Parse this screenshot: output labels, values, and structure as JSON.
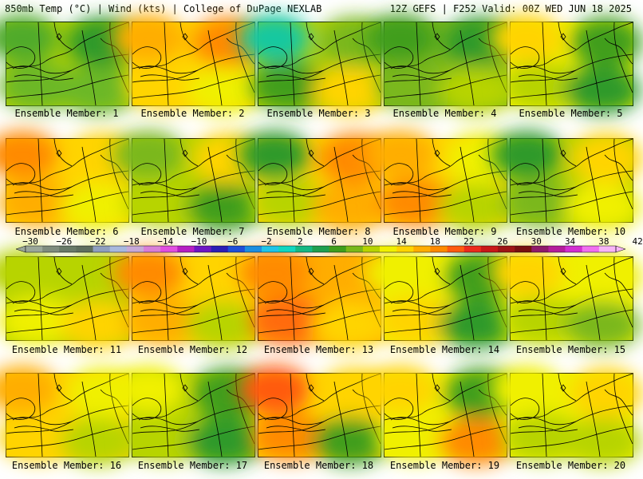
{
  "header": {
    "left": "850mb Temp (°C) | Wind (kts) | College of DuPage NEXLAB",
    "right": "12Z GEFS | F252 Valid: 00Z WED JUN 18 2025"
  },
  "colorbar": {
    "tick_labels": [
      "−30",
      "−26",
      "−22",
      "−18",
      "−14",
      "−10",
      "−6",
      "−2",
      "2",
      "6",
      "10",
      "14",
      "18",
      "22",
      "26",
      "30",
      "34",
      "38",
      "42"
    ],
    "colors": [
      "#9aa79a",
      "#7f8c7f",
      "#697a69",
      "#5f6f5f",
      "#8e9fbf",
      "#a8b8dd",
      "#c7a9d8",
      "#d87ed8",
      "#e14ee1",
      "#b51fc4",
      "#6d17c4",
      "#2b1fb5",
      "#1f4fd8",
      "#1c8ee0",
      "#20c4e8",
      "#12d6c0",
      "#16b884",
      "#1fa050",
      "#3f9e1c",
      "#7ab81a",
      "#b7d400",
      "#f0f000",
      "#ffd400",
      "#ffad00",
      "#ff8a00",
      "#ff5a10",
      "#ec2a1c",
      "#c81818",
      "#9e1414",
      "#781010",
      "#8f1a6a",
      "#b41c9c",
      "#d22fd2",
      "#f06ff0",
      "#f7b5f7"
    ],
    "units": "°C"
  },
  "panels": [
    {
      "label": "Ensemble Member: 1",
      "colors": [
        "#4faa2a",
        "#6cb826",
        "#2f9a2a",
        "#6cb826"
      ],
      "base": "#b7d400"
    },
    {
      "label": "Ensemble Member: 2",
      "colors": [
        "#ffad00",
        "#ffd400",
        "#ff8a00",
        "#f0f000"
      ],
      "base": "#ffd400"
    },
    {
      "label": "Ensemble Member: 3",
      "colors": [
        "#12c8a0",
        "#3f9e1c",
        "#7ab81a",
        "#ffd400"
      ],
      "base": "#b7d400"
    },
    {
      "label": "Ensemble Member: 4",
      "colors": [
        "#3f9e1c",
        "#7ab81a",
        "#2f9a2a",
        "#b7d400"
      ],
      "base": "#7ab81a"
    },
    {
      "label": "Ensemble Member: 5",
      "colors": [
        "#ffd400",
        "#b7d400",
        "#3f9e1c",
        "#2f9a2a"
      ],
      "base": "#f0f000"
    },
    {
      "label": "Ensemble Member: 6",
      "colors": [
        "#ff8a00",
        "#ffad00",
        "#ffd400",
        "#f0f000"
      ],
      "base": "#ffd400"
    },
    {
      "label": "Ensemble Member: 7",
      "colors": [
        "#7ab81a",
        "#b7d400",
        "#ffd400",
        "#3f9e1c"
      ],
      "base": "#b7d400"
    },
    {
      "label": "Ensemble Member: 8",
      "colors": [
        "#2f9a2a",
        "#b7d400",
        "#ff8a00",
        "#ffad00"
      ],
      "base": "#ffd400"
    },
    {
      "label": "Ensemble Member: 9",
      "colors": [
        "#ffad00",
        "#ff8a00",
        "#f0f000",
        "#b7d400"
      ],
      "base": "#ffd400"
    },
    {
      "label": "Ensemble Member: 10",
      "colors": [
        "#2f9a2a",
        "#7ab81a",
        "#ffd400",
        "#f0f000"
      ],
      "base": "#b7d400"
    },
    {
      "label": "Ensemble Member: 11",
      "colors": [
        "#b7d400",
        "#f0f000",
        "#b7d400",
        "#ffd400"
      ],
      "base": "#b7d400"
    },
    {
      "label": "Ensemble Member: 12",
      "colors": [
        "#ff8a00",
        "#ffad00",
        "#ffd400",
        "#b7d400"
      ],
      "base": "#ffd400"
    },
    {
      "label": "Ensemble Member: 13",
      "colors": [
        "#ff8a00",
        "#ff6a10",
        "#ffad00",
        "#ffd400"
      ],
      "base": "#ffad00"
    },
    {
      "label": "Ensemble Member: 14",
      "colors": [
        "#f0f000",
        "#ffd400",
        "#3f9e1c",
        "#2f9a2a"
      ],
      "base": "#f0f000"
    },
    {
      "label": "Ensemble Member: 15",
      "colors": [
        "#ffd400",
        "#b7d400",
        "#f0f000",
        "#7ab81a"
      ],
      "base": "#f0f000"
    },
    {
      "label": "Ensemble Member: 16",
      "colors": [
        "#ffad00",
        "#ffd400",
        "#f0f000",
        "#b7d400"
      ],
      "base": "#ffd400"
    },
    {
      "label": "Ensemble Member: 17",
      "colors": [
        "#f0f000",
        "#b7d400",
        "#3f9e1c",
        "#2f9a2a"
      ],
      "base": "#b7d400"
    },
    {
      "label": "Ensemble Member: 18",
      "colors": [
        "#ff5a10",
        "#ff8a00",
        "#ffd400",
        "#3f9e1c"
      ],
      "base": "#ffd400"
    },
    {
      "label": "Ensemble Member: 19",
      "colors": [
        "#ffd400",
        "#f0f000",
        "#3f9e1c",
        "#ff8a00"
      ],
      "base": "#f0f000"
    },
    {
      "label": "Ensemble Member: 20",
      "colors": [
        "#f0f000",
        "#b7d400",
        "#ffd400",
        "#b7d400"
      ],
      "base": "#f0f000"
    }
  ]
}
